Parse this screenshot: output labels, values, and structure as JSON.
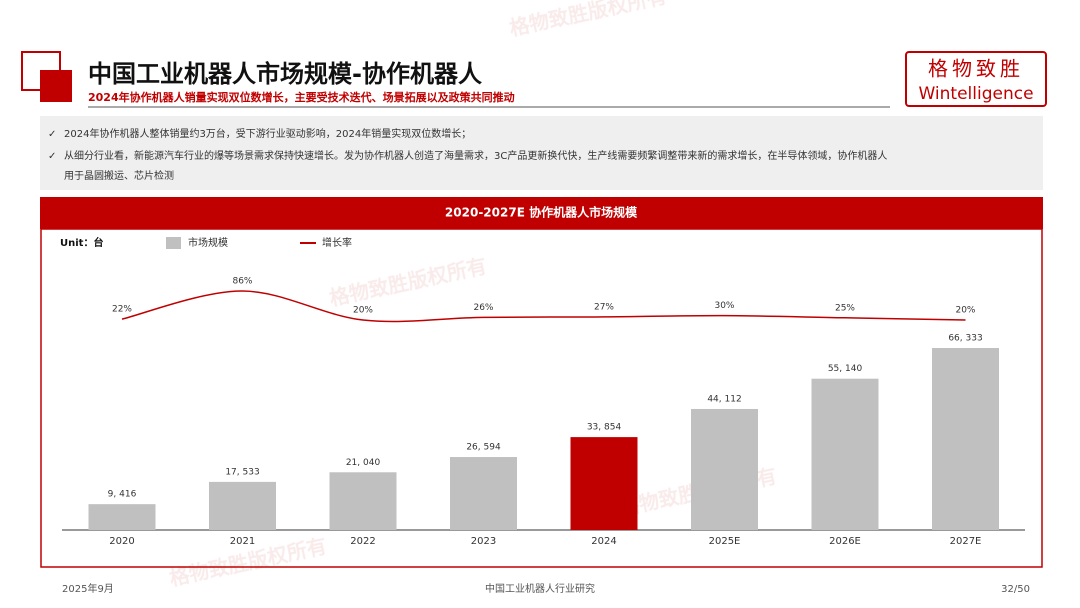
{
  "header": {
    "title": "中国工业机器人市场规模-协作机器人",
    "subtitle": "2024年协作机器人销量实现双位数增长，主要受技术迭代、场景拓展以及政策共同推动",
    "logo_cn": "格物致胜",
    "logo_en": "Wintelligence"
  },
  "bullets": [
    "2024年协作机器人整体销量约3万台，受下游行业驱动影响，2024年销量实现双位数增长；",
    "从细分行业看，新能源汽车行业的爆等场景需求保持快速增长。发为协作机器人创造了海量需求，3C产品更新换代快，生产线需要频繁调整带来新的需求增长，在半导体领域，协作机器人用于晶圆搬运、芯片检测"
  ],
  "watermark": "格物致胜版权所有",
  "chart_data": {
    "type": "bar",
    "title": "2020-2027E 协作机器人市场规模",
    "unit": "Unit：台",
    "categories": [
      "2020",
      "2021",
      "2022",
      "2023",
      "2024",
      "2025E",
      "2026E",
      "2027E"
    ],
    "series": [
      {
        "name": "市场规模",
        "color": "#c0c0c0",
        "colors": [
          "#c0c0c0",
          "#c0c0c0",
          "#c0c0c0",
          "#c0c0c0",
          "#c00000",
          "#c0c0c0",
          "#c0c0c0",
          "#c0c0c0"
        ],
        "values": [
          9416,
          17533,
          21040,
          26594,
          33854,
          44112,
          55140,
          66333
        ],
        "value_labels": [
          "9, 416",
          "17, 533",
          "21, 040",
          "26, 594",
          "33, 854",
          "44, 112",
          "55, 140",
          "66, 333"
        ]
      },
      {
        "name": "增长率",
        "type": "line",
        "color": "#c00000",
        "values": [
          22,
          86,
          20,
          26,
          27,
          30,
          25,
          20
        ],
        "value_labels": [
          "22%",
          "86%",
          "20%",
          "26%",
          "27%",
          "30%",
          "25%",
          "20%"
        ]
      }
    ]
  },
  "footer": {
    "date": "2025年9月",
    "center": "中国工业机器人行业研究",
    "page": "32/50"
  }
}
